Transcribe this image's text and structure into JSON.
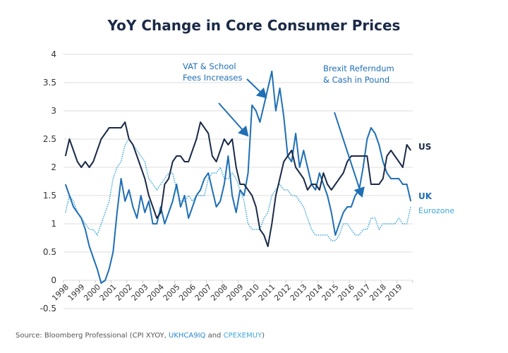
{
  "chart_data": {
    "type": "line",
    "title": "YoY Change in Core Consumer Prices",
    "xlabel": "",
    "ylabel": "",
    "ylim": [
      -0.5,
      4
    ],
    "yticks": [
      "4",
      "3.5",
      "3",
      "2.5",
      "2",
      "1.5",
      "1",
      "0.5",
      "0",
      "-0.5"
    ],
    "xticks": [
      "1998",
      "1999",
      "2000",
      "2001",
      "2002",
      "2003",
      "2004",
      "2005",
      "2006",
      "2007",
      "2008",
      "2009",
      "2010",
      "2011",
      "2012",
      "2013",
      "2014",
      "2015",
      "2016",
      "2017",
      "2018",
      "2019"
    ],
    "grid": "horizontal",
    "x_start": 1998,
    "x_step": 0.25,
    "series": [
      {
        "name": "US",
        "color": "#1b2a47",
        "style": "solid",
        "values": [
          2.2,
          2.5,
          2.3,
          2.1,
          2.0,
          2.1,
          2.0,
          2.1,
          2.3,
          2.5,
          2.6,
          2.7,
          2.7,
          2.7,
          2.7,
          2.8,
          2.5,
          2.4,
          2.2,
          2.0,
          1.8,
          1.5,
          1.3,
          1.1,
          1.2,
          1.7,
          1.8,
          2.1,
          2.2,
          2.2,
          2.1,
          2.1,
          2.3,
          2.5,
          2.8,
          2.7,
          2.6,
          2.2,
          2.1,
          2.3,
          2.5,
          2.4,
          2.5,
          2.0,
          1.7,
          1.7,
          1.6,
          1.5,
          1.3,
          0.9,
          0.8,
          0.6,
          1.0,
          1.5,
          1.8,
          2.1,
          2.2,
          2.3,
          2.0,
          1.9,
          1.8,
          1.6,
          1.7,
          1.7,
          1.6,
          1.9,
          1.7,
          1.6,
          1.7,
          1.8,
          1.9,
          2.1,
          2.2,
          2.2,
          2.2,
          2.2,
          2.2,
          1.7,
          1.7,
          1.7,
          1.8,
          2.2,
          2.3,
          2.2,
          2.1,
          2.0,
          2.4,
          2.3
        ]
      },
      {
        "name": "UK",
        "color": "#1f6fb5",
        "style": "solid",
        "values": [
          1.7,
          1.5,
          1.3,
          1.2,
          1.1,
          0.9,
          0.6,
          0.4,
          0.2,
          -0.05,
          0.0,
          0.2,
          0.5,
          1.2,
          1.8,
          1.4,
          1.6,
          1.3,
          1.1,
          1.5,
          1.2,
          1.4,
          1.0,
          1.0,
          1.3,
          1.0,
          1.2,
          1.4,
          1.7,
          1.3,
          1.5,
          1.1,
          1.3,
          1.5,
          1.6,
          1.8,
          1.9,
          1.6,
          1.3,
          1.4,
          1.7,
          2.2,
          1.5,
          1.2,
          1.6,
          1.5,
          1.9,
          3.1,
          3.0,
          2.8,
          3.1,
          3.4,
          3.7,
          3.0,
          3.4,
          2.9,
          2.2,
          2.1,
          2.6,
          2.0,
          2.3,
          2.0,
          1.7,
          1.6,
          1.9,
          1.7,
          1.5,
          1.2,
          0.8,
          1.0,
          1.2,
          1.3,
          1.3,
          1.5,
          1.6,
          2.0,
          2.5,
          2.7,
          2.6,
          2.4,
          2.1,
          1.9,
          1.8,
          1.8,
          1.8,
          1.7,
          1.7,
          1.4
        ]
      },
      {
        "name": "Eurozone",
        "color": "#3ba6d9",
        "style": "dotted",
        "values": [
          1.2,
          1.5,
          1.4,
          1.2,
          1.1,
          1.0,
          0.9,
          0.9,
          0.8,
          1.0,
          1.2,
          1.4,
          1.8,
          2.0,
          2.1,
          2.4,
          2.5,
          2.4,
          2.3,
          2.2,
          2.1,
          1.8,
          1.7,
          1.6,
          1.7,
          1.8,
          1.9,
          1.9,
          1.6,
          1.4,
          1.4,
          1.5,
          1.4,
          1.5,
          1.5,
          1.5,
          1.8,
          1.9,
          1.9,
          2.0,
          1.8,
          1.8,
          1.9,
          1.8,
          1.6,
          1.4,
          1.0,
          0.9,
          0.9,
          0.9,
          1.1,
          1.2,
          1.5,
          1.6,
          1.7,
          1.6,
          1.6,
          1.5,
          1.5,
          1.4,
          1.3,
          1.1,
          0.9,
          0.8,
          0.8,
          0.8,
          0.8,
          0.7,
          0.7,
          0.8,
          1.0,
          1.0,
          0.9,
          0.8,
          0.8,
          0.9,
          0.9,
          1.1,
          1.1,
          0.9,
          1.0,
          1.0,
          1.0,
          1.0,
          1.1,
          1.0,
          1.0,
          1.3
        ]
      }
    ],
    "annotations": [
      {
        "lines": [
          "VAT & School",
          "Fees Increases"
        ]
      },
      {
        "lines": [
          "Brexit Referndum",
          "& Cash in Pound"
        ]
      }
    ]
  },
  "source": {
    "prefix": "Source: Bloomberg Professional (CPI XYOY, ",
    "uk": "UKHCA9IQ",
    "mid": " and ",
    "ez": "CPEXEMUY",
    "suffix": ")"
  }
}
